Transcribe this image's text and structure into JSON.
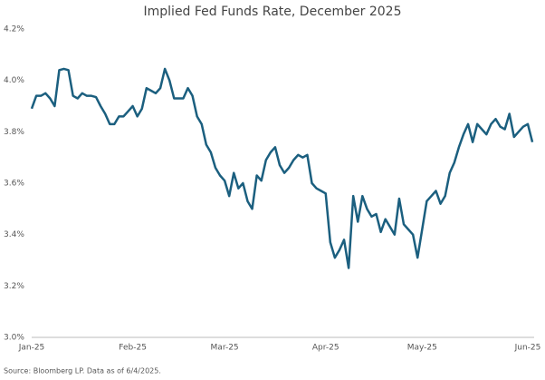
{
  "chart_data": {
    "type": "line",
    "title": "Implied Fed Funds Rate, December 2025",
    "source": "Source: Bloomberg LP. Data as of 6/4/2025.",
    "categories": [
      "Jan-25",
      null,
      null,
      null,
      null,
      null,
      null,
      null,
      null,
      null,
      null,
      null,
      null,
      null,
      null,
      null,
      null,
      null,
      null,
      null,
      null,
      null,
      "Feb-25",
      null,
      null,
      null,
      null,
      null,
      null,
      null,
      null,
      null,
      null,
      null,
      null,
      null,
      null,
      null,
      null,
      null,
      null,
      null,
      "Mar-25",
      null,
      null,
      null,
      null,
      null,
      null,
      null,
      null,
      null,
      null,
      null,
      null,
      null,
      null,
      null,
      null,
      null,
      null,
      null,
      null,
      null,
      "Apr-25",
      null,
      null,
      null,
      null,
      null,
      null,
      null,
      null,
      null,
      null,
      null,
      null,
      null,
      null,
      null,
      null,
      null,
      null,
      null,
      null,
      "May-25",
      null,
      null,
      null,
      null,
      null,
      null,
      null,
      null,
      null,
      null,
      null,
      null,
      null,
      null,
      null,
      null,
      null,
      null,
      null,
      null,
      null,
      null,
      "Jun-25",
      null
    ],
    "series": [
      {
        "name": "Implied Fed Funds Rate",
        "color": "#1b5f7f",
        "values": [
          3.89,
          3.94,
          3.94,
          3.95,
          3.93,
          3.9,
          4.04,
          4.045,
          4.04,
          3.94,
          3.93,
          3.95,
          3.94,
          3.94,
          3.935,
          3.9,
          3.87,
          3.83,
          3.83,
          3.86,
          3.86,
          3.88,
          3.9,
          3.86,
          3.89,
          3.97,
          3.96,
          3.95,
          3.97,
          4.045,
          4.0,
          3.93,
          3.93,
          3.93,
          3.97,
          3.94,
          3.86,
          3.83,
          3.75,
          3.72,
          3.66,
          3.63,
          3.61,
          3.55,
          3.64,
          3.58,
          3.6,
          3.53,
          3.5,
          3.63,
          3.61,
          3.69,
          3.72,
          3.74,
          3.67,
          3.64,
          3.66,
          3.69,
          3.71,
          3.7,
          3.71,
          3.6,
          3.58,
          3.57,
          3.56,
          3.37,
          3.31,
          3.34,
          3.38,
          3.27,
          3.55,
          3.45,
          3.55,
          3.5,
          3.47,
          3.48,
          3.41,
          3.46,
          3.43,
          3.4,
          3.54,
          3.44,
          3.42,
          3.4,
          3.31,
          3.42,
          3.53,
          3.55,
          3.57,
          3.52,
          3.55,
          3.64,
          3.68,
          3.74,
          3.79,
          3.83,
          3.76,
          3.83,
          3.81,
          3.79,
          3.83,
          3.85,
          3.82,
          3.81,
          3.87,
          3.78,
          3.8,
          3.82,
          3.83,
          3.76
        ]
      }
    ],
    "ylim": [
      3.0,
      4.2
    ],
    "yticks": [
      {
        "value": 3.0,
        "label": "3.0%"
      },
      {
        "value": 3.2,
        "label": "3.2%"
      },
      {
        "value": 3.4,
        "label": "3.4%"
      },
      {
        "value": 3.6,
        "label": "3.6%"
      },
      {
        "value": 3.8,
        "label": "3.8%"
      },
      {
        "value": 4.0,
        "label": "4.0%"
      },
      {
        "value": 4.2,
        "label": "4.2%"
      }
    ],
    "grid": false
  }
}
